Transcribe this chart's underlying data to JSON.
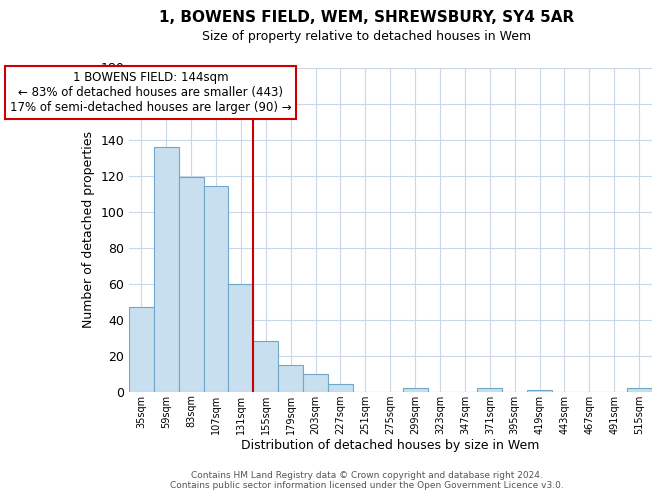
{
  "title": "1, BOWENS FIELD, WEM, SHREWSBURY, SY4 5AR",
  "subtitle": "Size of property relative to detached houses in Wem",
  "xlabel": "Distribution of detached houses by size in Wem",
  "ylabel": "Number of detached properties",
  "bar_color": "#c8dff0",
  "bar_edge_color": "#6fa8c8",
  "bin_labels": [
    "35sqm",
    "59sqm",
    "83sqm",
    "107sqm",
    "131sqm",
    "155sqm",
    "179sqm",
    "203sqm",
    "227sqm",
    "251sqm",
    "275sqm",
    "299sqm",
    "323sqm",
    "347sqm",
    "371sqm",
    "395sqm",
    "419sqm",
    "443sqm",
    "467sqm",
    "491sqm",
    "515sqm"
  ],
  "bin_values": [
    47,
    136,
    119,
    114,
    60,
    28,
    15,
    10,
    4,
    0,
    0,
    2,
    0,
    0,
    2,
    0,
    1,
    0,
    0,
    0,
    2
  ],
  "ylim": [
    0,
    180
  ],
  "yticks": [
    0,
    20,
    40,
    60,
    80,
    100,
    120,
    140,
    160,
    180
  ],
  "vline_color": "#cc0000",
  "annotation_line1": "1 BOWENS FIELD: 144sqm",
  "annotation_line2": "← 83% of detached houses are smaller (443)",
  "annotation_line3": "17% of semi-detached houses are larger (90) →",
  "annotation_box_color": "#ffffff",
  "annotation_box_edge_color": "#cc0000",
  "footer_line1": "Contains HM Land Registry data © Crown copyright and database right 2024.",
  "footer_line2": "Contains public sector information licensed under the Open Government Licence v3.0.",
  "background_color": "#ffffff",
  "grid_color": "#c8d8e8"
}
